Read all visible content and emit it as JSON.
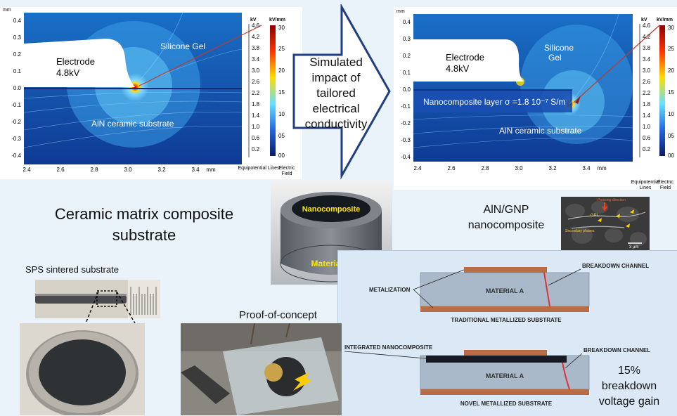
{
  "left_sim": {
    "axis_unit": "mm",
    "y_ticks": [
      "0.4",
      "0.3",
      "0.2",
      "0.1",
      "0.0",
      "-0.1",
      "-0.2",
      "-0.3",
      "-0.4"
    ],
    "x_ticks": [
      "2.4",
      "2.6",
      "2.8",
      "3.0",
      "3.2",
      "3.4"
    ],
    "x_unit": "mm",
    "electrode_label": "Electrode",
    "electrode_voltage": "4.8kV",
    "gel_label": "Silicone Gel",
    "substrate_label": "AlN ceramic substrate",
    "kv_header": "kV",
    "kv_ticks": [
      "4.6",
      "4.2",
      "3.8",
      "3.4",
      "3.0",
      "2.6",
      "2.2",
      "1.8",
      "1.4",
      "1.0",
      "0.6",
      "0.2"
    ],
    "field_header": "kV/mm",
    "field_ticks": [
      "30",
      "25",
      "20",
      "15",
      "10",
      "05",
      "00"
    ],
    "legend_equipotential": "Equipotential Lines",
    "legend_field": "Electric Field"
  },
  "right_sim": {
    "axis_unit": "mm",
    "y_ticks": [
      "0.4",
      "0.3",
      "0.2",
      "0.1",
      "0.0",
      "-0.1",
      "-0.2",
      "-0.3",
      "-0.4"
    ],
    "x_ticks": [
      "2.4",
      "2.6",
      "2.8",
      "3.0",
      "3.2",
      "3.4"
    ],
    "x_unit": "mm",
    "electrode_label": "Electrode",
    "electrode_voltage": "4.8kV",
    "gel_label": "Silicone Gel",
    "nano_layer_label": "Nanocomposite layer σ =1.8 10⁻⁷ S/m",
    "substrate_label": "AlN ceramic substrate",
    "kv_header": "kV",
    "kv_ticks": [
      "4.6",
      "4.2",
      "3.8",
      "3.4",
      "3.0",
      "2.6",
      "2.2",
      "1.8",
      "1.4",
      "1.0",
      "0.6",
      "0.2"
    ],
    "field_header": "kV/mm",
    "field_ticks": [
      "30",
      "25",
      "20",
      "15",
      "10",
      "05",
      "00"
    ],
    "legend_equipotential": "Equipotential Lines",
    "legend_field": "Electric Field"
  },
  "arrow_text": [
    "Simulated",
    "impact of",
    "tailored",
    "electrical",
    "conductivity"
  ],
  "cmc_title": [
    "Ceramic matrix composite",
    "substrate"
  ],
  "cylinder": {
    "top_label": "Nanocomposite",
    "bottom_label": "Material A"
  },
  "aln_gnp": [
    "AlN/GNP",
    "nanocomposite"
  ],
  "sem": {
    "pressing": "Pressing direction",
    "gpl": "GPL",
    "secondary": "Secondary phases",
    "scale": "3 µm"
  },
  "sps_label": "SPS sintered substrate",
  "poc_label": "Proof-of-concept",
  "trad": {
    "breakdown": "BREAKDOWN CHANNEL",
    "metalization": "METALIZATION",
    "material": "MATERIAL A",
    "caption": "TRADITIONAL METALLIZED SUBSTRATE"
  },
  "novel": {
    "integrated": "INTEGRATED NANOCOMPOSITE",
    "breakdown": "BREAKDOWN CHANNEL",
    "material": "MATERIAL A",
    "caption": "NOVEL METALLIZED SUBSTRATE"
  },
  "gain_text": [
    "15%",
    "breakdown",
    "voltage gain"
  ],
  "colors": {
    "metal": "#b86d47",
    "material": "#a9b9c9",
    "channel": "#e0303a",
    "panel": "#dbe9f6",
    "arrow_blue": "#1f3e84"
  }
}
